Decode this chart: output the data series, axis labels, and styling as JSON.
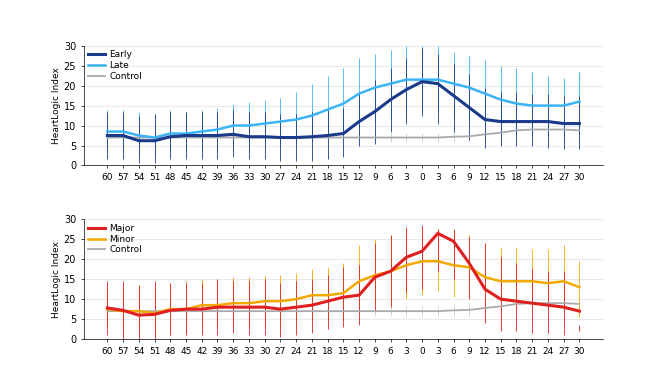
{
  "x_ticks": [
    60,
    57,
    54,
    51,
    48,
    45,
    42,
    39,
    36,
    33,
    30,
    27,
    24,
    21,
    18,
    15,
    12,
    9,
    6,
    3,
    0,
    3,
    6,
    9,
    12,
    15,
    18,
    21,
    24,
    27,
    30
  ],
  "x_vals": [
    -60,
    -57,
    -54,
    -51,
    -48,
    -45,
    -42,
    -39,
    -36,
    -33,
    -30,
    -27,
    -24,
    -21,
    -18,
    -15,
    -12,
    -9,
    -6,
    -3,
    0,
    3,
    6,
    9,
    12,
    15,
    18,
    21,
    24,
    27,
    30
  ],
  "early_mean": [
    7.5,
    7.5,
    6.2,
    6.2,
    7.2,
    7.5,
    7.5,
    7.5,
    7.8,
    7.2,
    7.2,
    7.0,
    7.0,
    7.2,
    7.5,
    8.0,
    11.0,
    13.5,
    16.5,
    19.0,
    21.0,
    20.5,
    17.5,
    14.5,
    11.5,
    11.0,
    11.0,
    11.0,
    11.0,
    10.5,
    10.5
  ],
  "early_low": [
    1.5,
    1.5,
    0.5,
    0.5,
    1.5,
    1.5,
    1.5,
    1.5,
    2.0,
    1.5,
    1.5,
    1.0,
    1.0,
    1.0,
    1.5,
    2.0,
    5.0,
    5.5,
    8.5,
    10.5,
    12.5,
    10.5,
    8.5,
    6.5,
    4.5,
    5.0,
    5.0,
    5.0,
    4.5,
    4.0,
    4.0
  ],
  "early_high": [
    13.5,
    13.5,
    12.5,
    13.0,
    13.5,
    13.5,
    13.5,
    13.5,
    14.0,
    13.5,
    13.5,
    13.0,
    13.0,
    13.5,
    14.0,
    14.5,
    18.5,
    21.5,
    24.5,
    27.0,
    29.5,
    28.0,
    25.5,
    23.0,
    19.5,
    18.5,
    18.5,
    18.0,
    18.0,
    17.5,
    17.5
  ],
  "late_mean": [
    8.5,
    8.5,
    7.5,
    7.0,
    8.0,
    8.0,
    8.5,
    9.0,
    10.0,
    10.0,
    10.5,
    11.0,
    11.5,
    12.5,
    14.0,
    15.5,
    18.0,
    19.5,
    20.5,
    21.5,
    21.5,
    21.5,
    20.5,
    19.5,
    18.0,
    16.5,
    15.5,
    15.0,
    15.0,
    15.0,
    16.0
  ],
  "late_low": [
    3.5,
    3.5,
    2.5,
    2.5,
    3.5,
    3.5,
    4.0,
    4.0,
    5.0,
    5.0,
    5.5,
    5.0,
    5.5,
    6.0,
    7.0,
    8.0,
    9.5,
    11.0,
    12.0,
    13.0,
    13.5,
    13.5,
    12.5,
    11.5,
    10.0,
    8.5,
    8.0,
    7.5,
    7.5,
    7.0,
    8.0
  ],
  "late_high": [
    14.0,
    14.0,
    13.5,
    13.0,
    14.0,
    13.5,
    14.0,
    14.5,
    15.5,
    16.0,
    16.5,
    17.0,
    18.5,
    20.5,
    22.5,
    24.5,
    27.0,
    28.0,
    29.0,
    30.0,
    30.0,
    30.0,
    28.5,
    27.5,
    26.5,
    25.0,
    24.5,
    23.5,
    22.5,
    22.0,
    23.5
  ],
  "control_mean_a": [
    7.0,
    7.0,
    7.0,
    7.0,
    7.0,
    7.0,
    7.0,
    7.0,
    7.0,
    7.0,
    7.0,
    7.0,
    7.0,
    7.0,
    7.0,
    7.0,
    7.0,
    7.0,
    7.0,
    7.0,
    7.0,
    7.0,
    7.2,
    7.3,
    7.8,
    8.2,
    8.8,
    9.0,
    9.0,
    9.0,
    8.8
  ],
  "control_low_a": [
    5.8,
    5.8,
    5.8,
    5.8,
    5.8,
    5.8,
    5.8,
    5.8,
    5.8,
    5.8,
    5.8,
    5.8,
    5.8,
    5.8,
    5.8,
    5.8,
    5.8,
    5.8,
    5.8,
    5.8,
    5.8,
    5.8,
    5.8,
    5.8,
    6.2,
    6.5,
    7.0,
    7.0,
    6.8,
    6.5,
    6.0
  ],
  "control_high_a": [
    8.2,
    8.2,
    8.2,
    8.2,
    8.2,
    8.2,
    8.2,
    8.2,
    8.2,
    8.2,
    8.2,
    8.2,
    8.2,
    8.2,
    8.2,
    8.2,
    8.2,
    8.2,
    8.2,
    8.2,
    8.2,
    8.2,
    8.8,
    9.2,
    10.0,
    10.5,
    11.5,
    11.5,
    11.2,
    11.0,
    10.8
  ],
  "major_mean": [
    7.8,
    7.2,
    6.0,
    6.2,
    7.2,
    7.5,
    7.5,
    8.0,
    8.0,
    8.0,
    8.0,
    7.5,
    8.0,
    8.5,
    9.5,
    10.5,
    11.0,
    15.5,
    17.0,
    20.5,
    22.0,
    26.5,
    24.5,
    19.0,
    12.5,
    10.0,
    9.5,
    9.0,
    8.5,
    8.0,
    7.0
  ],
  "major_low": [
    1.0,
    0.0,
    0.0,
    0.0,
    1.0,
    1.0,
    1.0,
    1.0,
    1.5,
    1.0,
    1.0,
    0.5,
    1.0,
    1.5,
    2.5,
    3.0,
    3.5,
    7.0,
    8.0,
    11.5,
    12.5,
    17.0,
    15.0,
    10.0,
    4.0,
    2.0,
    2.0,
    1.5,
    1.5,
    1.0,
    2.0
  ],
  "major_high": [
    14.5,
    14.5,
    13.5,
    14.5,
    14.0,
    14.0,
    14.0,
    15.0,
    14.5,
    14.5,
    15.0,
    14.0,
    14.5,
    15.0,
    16.0,
    18.0,
    18.5,
    24.0,
    26.0,
    28.0,
    28.5,
    27.5,
    27.5,
    25.5,
    24.0,
    20.5,
    19.0,
    17.5,
    17.0,
    17.0,
    3.5
  ],
  "minor_mean": [
    7.5,
    7.0,
    7.0,
    6.5,
    7.5,
    7.5,
    8.5,
    8.5,
    9.0,
    9.0,
    9.5,
    9.5,
    10.0,
    11.0,
    11.0,
    11.5,
    14.5,
    16.0,
    17.0,
    18.5,
    19.5,
    19.5,
    18.5,
    18.0,
    15.5,
    14.5,
    14.5,
    14.5,
    14.0,
    14.5,
    13.0
  ],
  "minor_low": [
    3.0,
    2.0,
    2.0,
    1.5,
    2.5,
    2.0,
    3.0,
    3.0,
    3.5,
    3.0,
    3.5,
    3.5,
    4.0,
    5.0,
    4.5,
    4.5,
    7.5,
    8.5,
    9.0,
    10.0,
    11.0,
    12.0,
    10.5,
    10.5,
    8.5,
    7.5,
    7.5,
    7.5,
    7.0,
    7.0,
    5.5
  ],
  "minor_high": [
    13.0,
    13.0,
    13.5,
    13.0,
    14.0,
    14.5,
    15.0,
    15.0,
    15.5,
    15.5,
    16.0,
    16.0,
    16.5,
    17.5,
    18.0,
    19.0,
    23.5,
    25.0,
    26.0,
    27.5,
    27.5,
    27.5,
    27.0,
    26.0,
    24.0,
    23.0,
    23.0,
    22.5,
    22.5,
    23.5,
    19.5
  ],
  "control_mean_b": [
    7.0,
    7.0,
    7.0,
    7.0,
    7.0,
    7.0,
    7.0,
    7.0,
    7.0,
    7.0,
    7.0,
    7.0,
    7.0,
    7.0,
    7.0,
    7.0,
    7.0,
    7.0,
    7.0,
    7.0,
    7.0,
    7.0,
    7.2,
    7.3,
    7.8,
    8.2,
    8.8,
    9.0,
    9.0,
    9.0,
    8.8
  ],
  "control_low_b": [
    5.8,
    5.8,
    5.8,
    5.8,
    5.8,
    5.8,
    5.8,
    5.8,
    5.8,
    5.8,
    5.8,
    5.8,
    5.8,
    5.8,
    5.8,
    5.8,
    5.8,
    5.8,
    5.8,
    5.8,
    5.8,
    5.8,
    5.8,
    5.8,
    6.2,
    6.5,
    7.0,
    7.0,
    6.8,
    6.5,
    6.0
  ],
  "control_high_b": [
    8.2,
    8.2,
    8.2,
    8.2,
    8.2,
    8.2,
    8.2,
    8.2,
    8.2,
    8.2,
    8.2,
    8.2,
    8.2,
    8.2,
    8.2,
    8.2,
    8.2,
    8.2,
    8.2,
    8.2,
    8.2,
    8.2,
    8.8,
    9.2,
    10.0,
    10.5,
    11.5,
    11.5,
    11.2,
    11.0,
    10.8
  ],
  "color_early": "#1a3a8a",
  "color_late": "#3ab4f5",
  "color_major": "#e02020",
  "color_minor": "#f5a800",
  "color_control": "#aaaaaa",
  "color_err_early": "#1a3a8a",
  "color_err_late": "#3ab4f5",
  "color_err_major": "#e02020",
  "color_err_minor": "#f5a800",
  "color_err_control": "#cccccc",
  "ylabel": "HeartLogic Index",
  "ylim": [
    0,
    30
  ],
  "yticks": [
    0,
    5,
    10,
    15,
    20,
    25,
    30
  ]
}
